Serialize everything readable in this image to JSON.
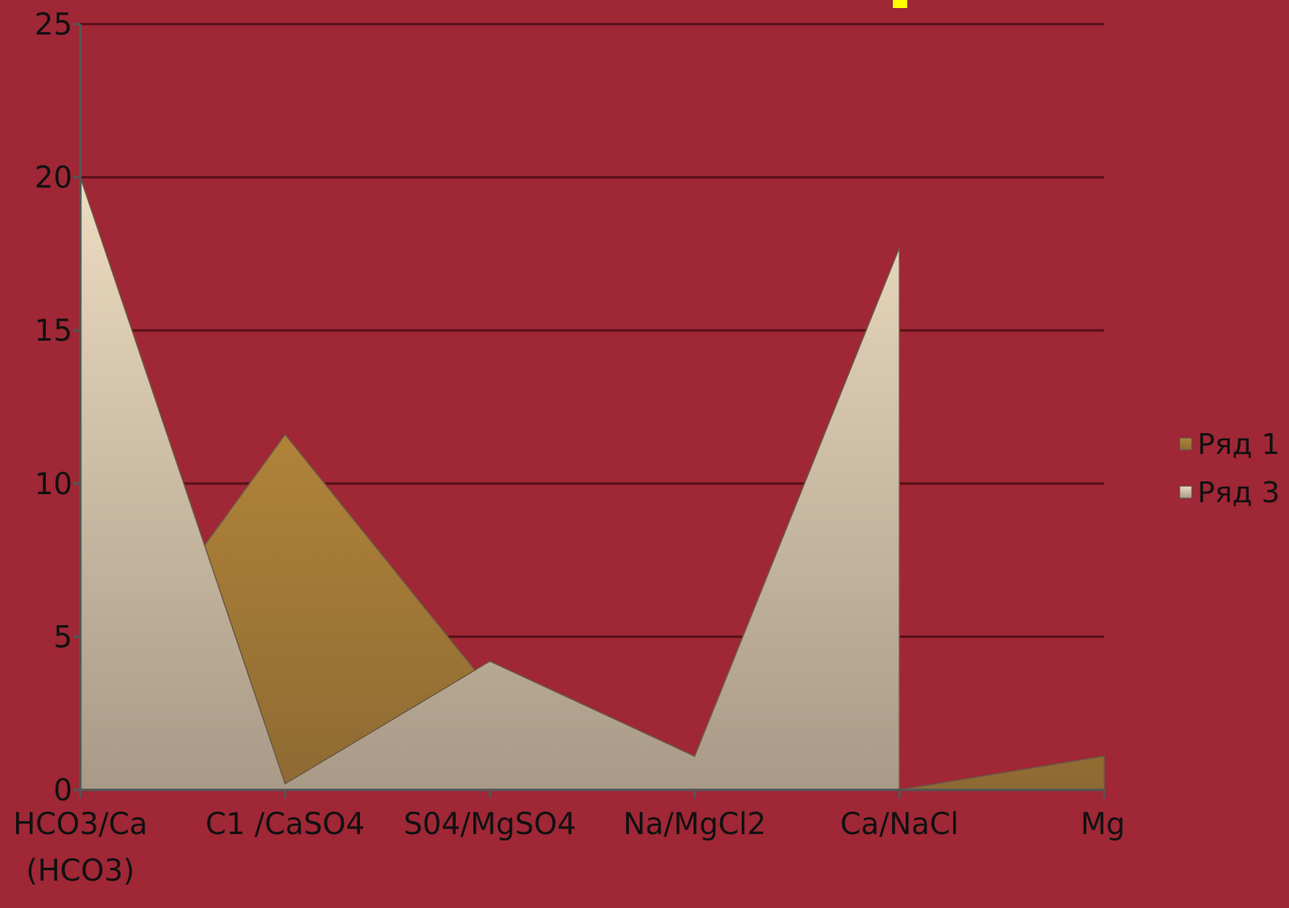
{
  "chart_data": {
    "type": "area",
    "categories": [
      [
        "HCO3/Ca",
        "(HCO3)"
      ],
      [
        "C1 /CaSO4"
      ],
      [
        "S04/MgSO4"
      ],
      [
        "Na/MgCl2"
      ],
      [
        "Ca/NaCl"
      ],
      [
        "Mg"
      ]
    ],
    "series": [
      {
        "name": "Ряд 1",
        "values": [
          2.4,
          11.6,
          3.3,
          0.2,
          0.0,
          1.1
        ],
        "color": "#8e6a33",
        "color_light": "#b08338"
      },
      {
        "name": "Ряд 3",
        "values": [
          20.0,
          0.2,
          4.2,
          1.1,
          17.7,
          null
        ],
        "color": "#a89a87",
        "color_light": "#eddcc0"
      }
    ],
    "ylim": [
      0,
      25
    ],
    "yticks": [
      0,
      5,
      10,
      15,
      20,
      25
    ],
    "grid": true,
    "legend": "right",
    "colors": {
      "background": "#9f2736",
      "gridline": "#5a1019",
      "axis": "#555555",
      "partial_title": "#ffff00"
    }
  }
}
